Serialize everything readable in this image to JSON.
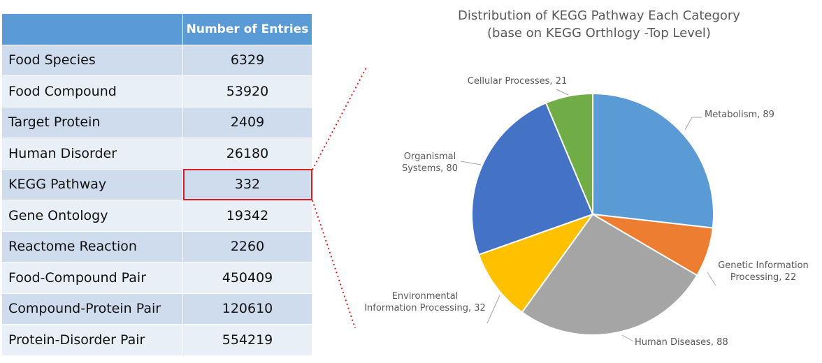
{
  "table": {
    "headers": [
      "",
      "Number of Entries"
    ],
    "rows": [
      {
        "name": "Food Species",
        "value": "6329"
      },
      {
        "name": "Food Compound",
        "value": "53920"
      },
      {
        "name": "Target Protein",
        "value": "2409"
      },
      {
        "name": "Human Disorder",
        "value": "26180"
      },
      {
        "name": "KEGG Pathway",
        "value": "332",
        "highlighted": true
      },
      {
        "name": "Gene Ontology",
        "value": "19342"
      },
      {
        "name": "Reactome Reaction",
        "value": "2260"
      },
      {
        "name": "Food-Compound Pair",
        "value": "450409"
      },
      {
        "name": "Compound-Protein Pair",
        "value": "120610"
      },
      {
        "name": "Protein-Disorder Pair",
        "value": "554219"
      }
    ]
  },
  "colors": {
    "header": "#5b9bd5",
    "highlight_border": "#d62020",
    "connector": "#d62020"
  },
  "chart_data": {
    "type": "pie",
    "title": "Distribution of KEGG Pathway Each Category",
    "subtitle": "(base on KEGG Orthlogy -Top Level)",
    "slices": [
      {
        "label": "Metabolism",
        "value": 89,
        "color": "#5b9bd5",
        "label_lines": [
          "Metabolism, 89"
        ]
      },
      {
        "label": "Genetic Information Processing",
        "value": 22,
        "color": "#ed7d31",
        "label_lines": [
          "Genetic Information",
          "Processing, 22"
        ]
      },
      {
        "label": "Human Diseases",
        "value": 88,
        "color": "#a5a5a5",
        "label_lines": [
          "Human Diseases, 88"
        ]
      },
      {
        "label": "Environmental Information Processing",
        "value": 32,
        "color": "#ffc000",
        "label_lines": [
          "Environmental",
          "Information Processing, 32"
        ]
      },
      {
        "label": "Organismal Systems",
        "value": 80,
        "color": "#4472c4",
        "label_lines": [
          "Organismal",
          "Systems, 80"
        ]
      },
      {
        "label": "Cellular Processes",
        "value": 21,
        "color": "#70ad47",
        "label_lines": [
          "Cellular Processes, 21"
        ]
      }
    ],
    "start_angle": "12 o'clock",
    "direction": "clockwise",
    "legend": "none"
  }
}
